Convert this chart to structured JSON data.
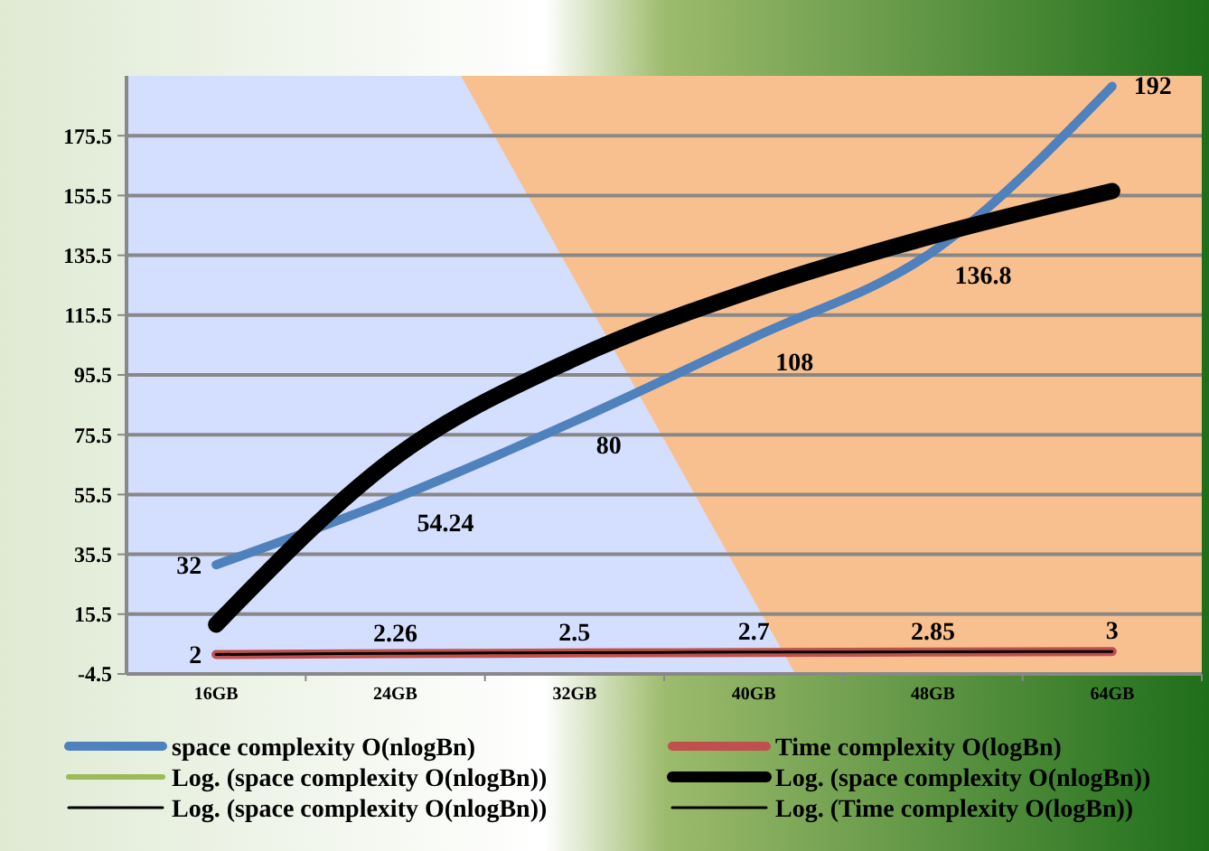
{
  "chart_data": {
    "type": "line",
    "categories": [
      "16GB",
      "24GB",
      "32GB",
      "40GB",
      "48GB",
      "64GB"
    ],
    "series": [
      {
        "name": "space complexity O(nlogBn)",
        "color": "#4f81bd",
        "values": [
          32,
          54.24,
          80,
          108,
          136.8,
          192
        ],
        "value_labels": [
          "32",
          "54.24",
          "80",
          "108",
          "136.8",
          "192"
        ]
      },
      {
        "name": "Time complexity O(logBn)",
        "color": "#c0504d",
        "values": [
          2,
          2.26,
          2.5,
          2.7,
          2.85,
          3
        ],
        "value_labels": [
          "2",
          "2.26",
          "2.5",
          "2.7",
          "2.85",
          "3"
        ]
      },
      {
        "name": "Log. (space complexity O(nlogBn))",
        "color": "#9bbb59",
        "values": [
          null,
          null,
          null,
          null,
          null,
          null
        ]
      },
      {
        "name": "Log. (space complexity O(nlogBn))",
        "color": "#000000",
        "values": [
          12,
          68,
          101,
          124,
          142,
          157
        ]
      },
      {
        "name": "Log. (space complexity O(nlogBn))",
        "color": "#000000",
        "values": [
          null,
          null,
          null,
          null,
          null,
          null
        ]
      },
      {
        "name": "Log. (Time complexity O(logBn))",
        "color": "#000000",
        "values": [
          2,
          2.4,
          2.6,
          2.8,
          2.9,
          3
        ]
      }
    ],
    "ylim": [
      -4.5,
      195.5
    ],
    "yticks": [
      -4.5,
      15.5,
      35.5,
      55.5,
      75.5,
      95.5,
      115.5,
      135.5,
      155.5,
      175.5
    ],
    "grid": "y",
    "legend": "bottom",
    "marker": "none"
  }
}
